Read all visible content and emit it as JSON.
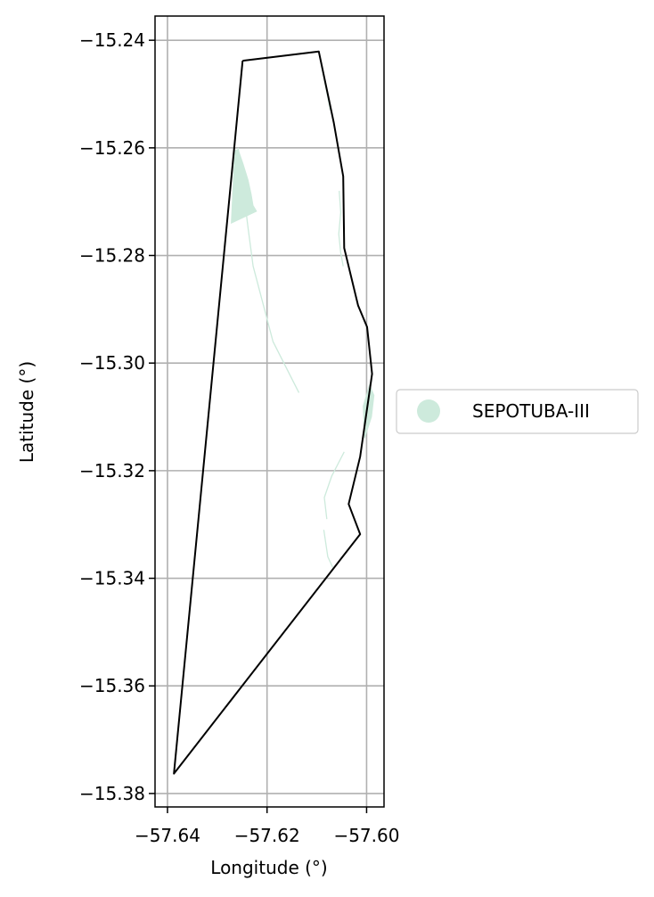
{
  "chart_data": {
    "type": "map",
    "xlabel": "Longitude (°)",
    "ylabel": "Latitude (°)",
    "xlim": [
      -57.6425,
      -57.5965
    ],
    "ylim": [
      -15.3825,
      -15.2355
    ],
    "x_ticks": [
      -57.64,
      -57.62,
      -57.6
    ],
    "x_tick_labels": [
      "−57.64",
      "−57.62",
      "−57.60"
    ],
    "y_ticks": [
      -15.24,
      -15.26,
      -15.28,
      -15.3,
      -15.32,
      -15.34,
      -15.36,
      -15.38
    ],
    "y_tick_labels": [
      "−15.24",
      "−15.26",
      "−15.28",
      "−15.30",
      "−15.32",
      "−15.34",
      "−15.36",
      "−15.38"
    ],
    "grid": true,
    "legend_position": "right",
    "legend": [
      {
        "label": "SEPOTUBA-III",
        "color": "#cdeadc",
        "marker": "circle"
      }
    ],
    "boundary": {
      "color": "#000000",
      "points": [
        [
          -57.6249,
          -15.2438
        ],
        [
          -57.6096,
          -15.2421
        ],
        [
          -57.6066,
          -15.2553
        ],
        [
          -57.6047,
          -15.2653
        ],
        [
          -57.6045,
          -15.2786
        ],
        [
          -57.6017,
          -15.2893
        ],
        [
          -57.5999,
          -15.2933
        ],
        [
          -57.5989,
          -15.302
        ],
        [
          -57.6013,
          -15.3174
        ],
        [
          -57.6036,
          -15.3262
        ],
        [
          -57.6013,
          -15.3318
        ],
        [
          -57.6387,
          -15.3763
        ],
        [
          -57.6249,
          -15.2438
        ]
      ]
    },
    "features": [
      {
        "name": "SEPOTUBA-III",
        "color": "#cdeadc",
        "polygons": [
          [
            [
              -57.6258,
              -15.2603
            ],
            [
              -57.6248,
              -15.263
            ],
            [
              -57.6238,
              -15.266
            ],
            [
              -57.6232,
              -15.2685
            ],
            [
              -57.6228,
              -15.2707
            ],
            [
              -57.6221,
              -15.2718
            ],
            [
              -57.6272,
              -15.274
            ],
            [
              -57.6265,
              -15.2605
            ]
          ],
          [
            [
              -57.5994,
              -15.304
            ],
            [
              -57.5985,
              -15.306
            ],
            [
              -57.599,
              -15.31
            ],
            [
              -57.6004,
              -15.314
            ],
            [
              -57.6007,
              -15.308
            ]
          ]
        ],
        "lines": [
          [
            [
              -57.6094,
              -15.243
            ],
            [
              -57.6073,
              -15.253
            ]
          ],
          [
            [
              -57.6258,
              -15.26
            ],
            [
              -57.6238,
              -15.275
            ],
            [
              -57.6228,
              -15.282
            ],
            [
              -57.6188,
              -15.296
            ],
            [
              -57.6136,
              -15.3055
            ]
          ],
          [
            [
              -57.6055,
              -15.268
            ],
            [
              -57.6052,
              -15.272
            ],
            [
              -57.6056,
              -15.276
            ],
            [
              -57.6052,
              -15.2795
            ],
            [
              -57.6047,
              -15.282
            ]
          ],
          [
            [
              -57.6045,
              -15.3165
            ],
            [
              -57.607,
              -15.321
            ],
            [
              -57.6085,
              -15.325
            ],
            [
              -57.608,
              -15.329
            ]
          ],
          [
            [
              -57.6086,
              -15.331
            ],
            [
              -57.6078,
              -15.336
            ],
            [
              -57.6068,
              -15.338
            ]
          ]
        ]
      }
    ]
  }
}
